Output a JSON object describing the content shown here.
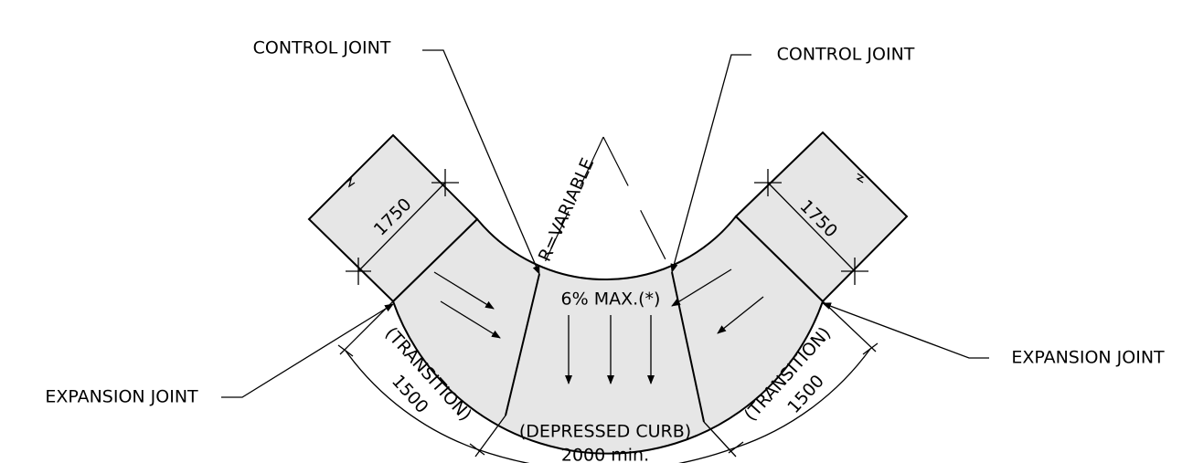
{
  "labels": {
    "control_joint_left": "CONTROL JOINT",
    "control_joint_right": "CONTROL JOINT",
    "expansion_joint_left": "EXPANSION JOINT",
    "expansion_joint_right": "EXPANSION JOINT",
    "radius": "R=VARIABLE",
    "width_left": "1750",
    "width_right": "1750",
    "slope": "6% MAX.(*)",
    "transition_left": "(TRANSITION)",
    "transition_left_length": "1500",
    "transition_right": "(TRANSITION)",
    "transition_right_length": "1500",
    "depressed_curb": "(DEPRESSED CURB)",
    "depressed_curb_length": "2000 min."
  }
}
